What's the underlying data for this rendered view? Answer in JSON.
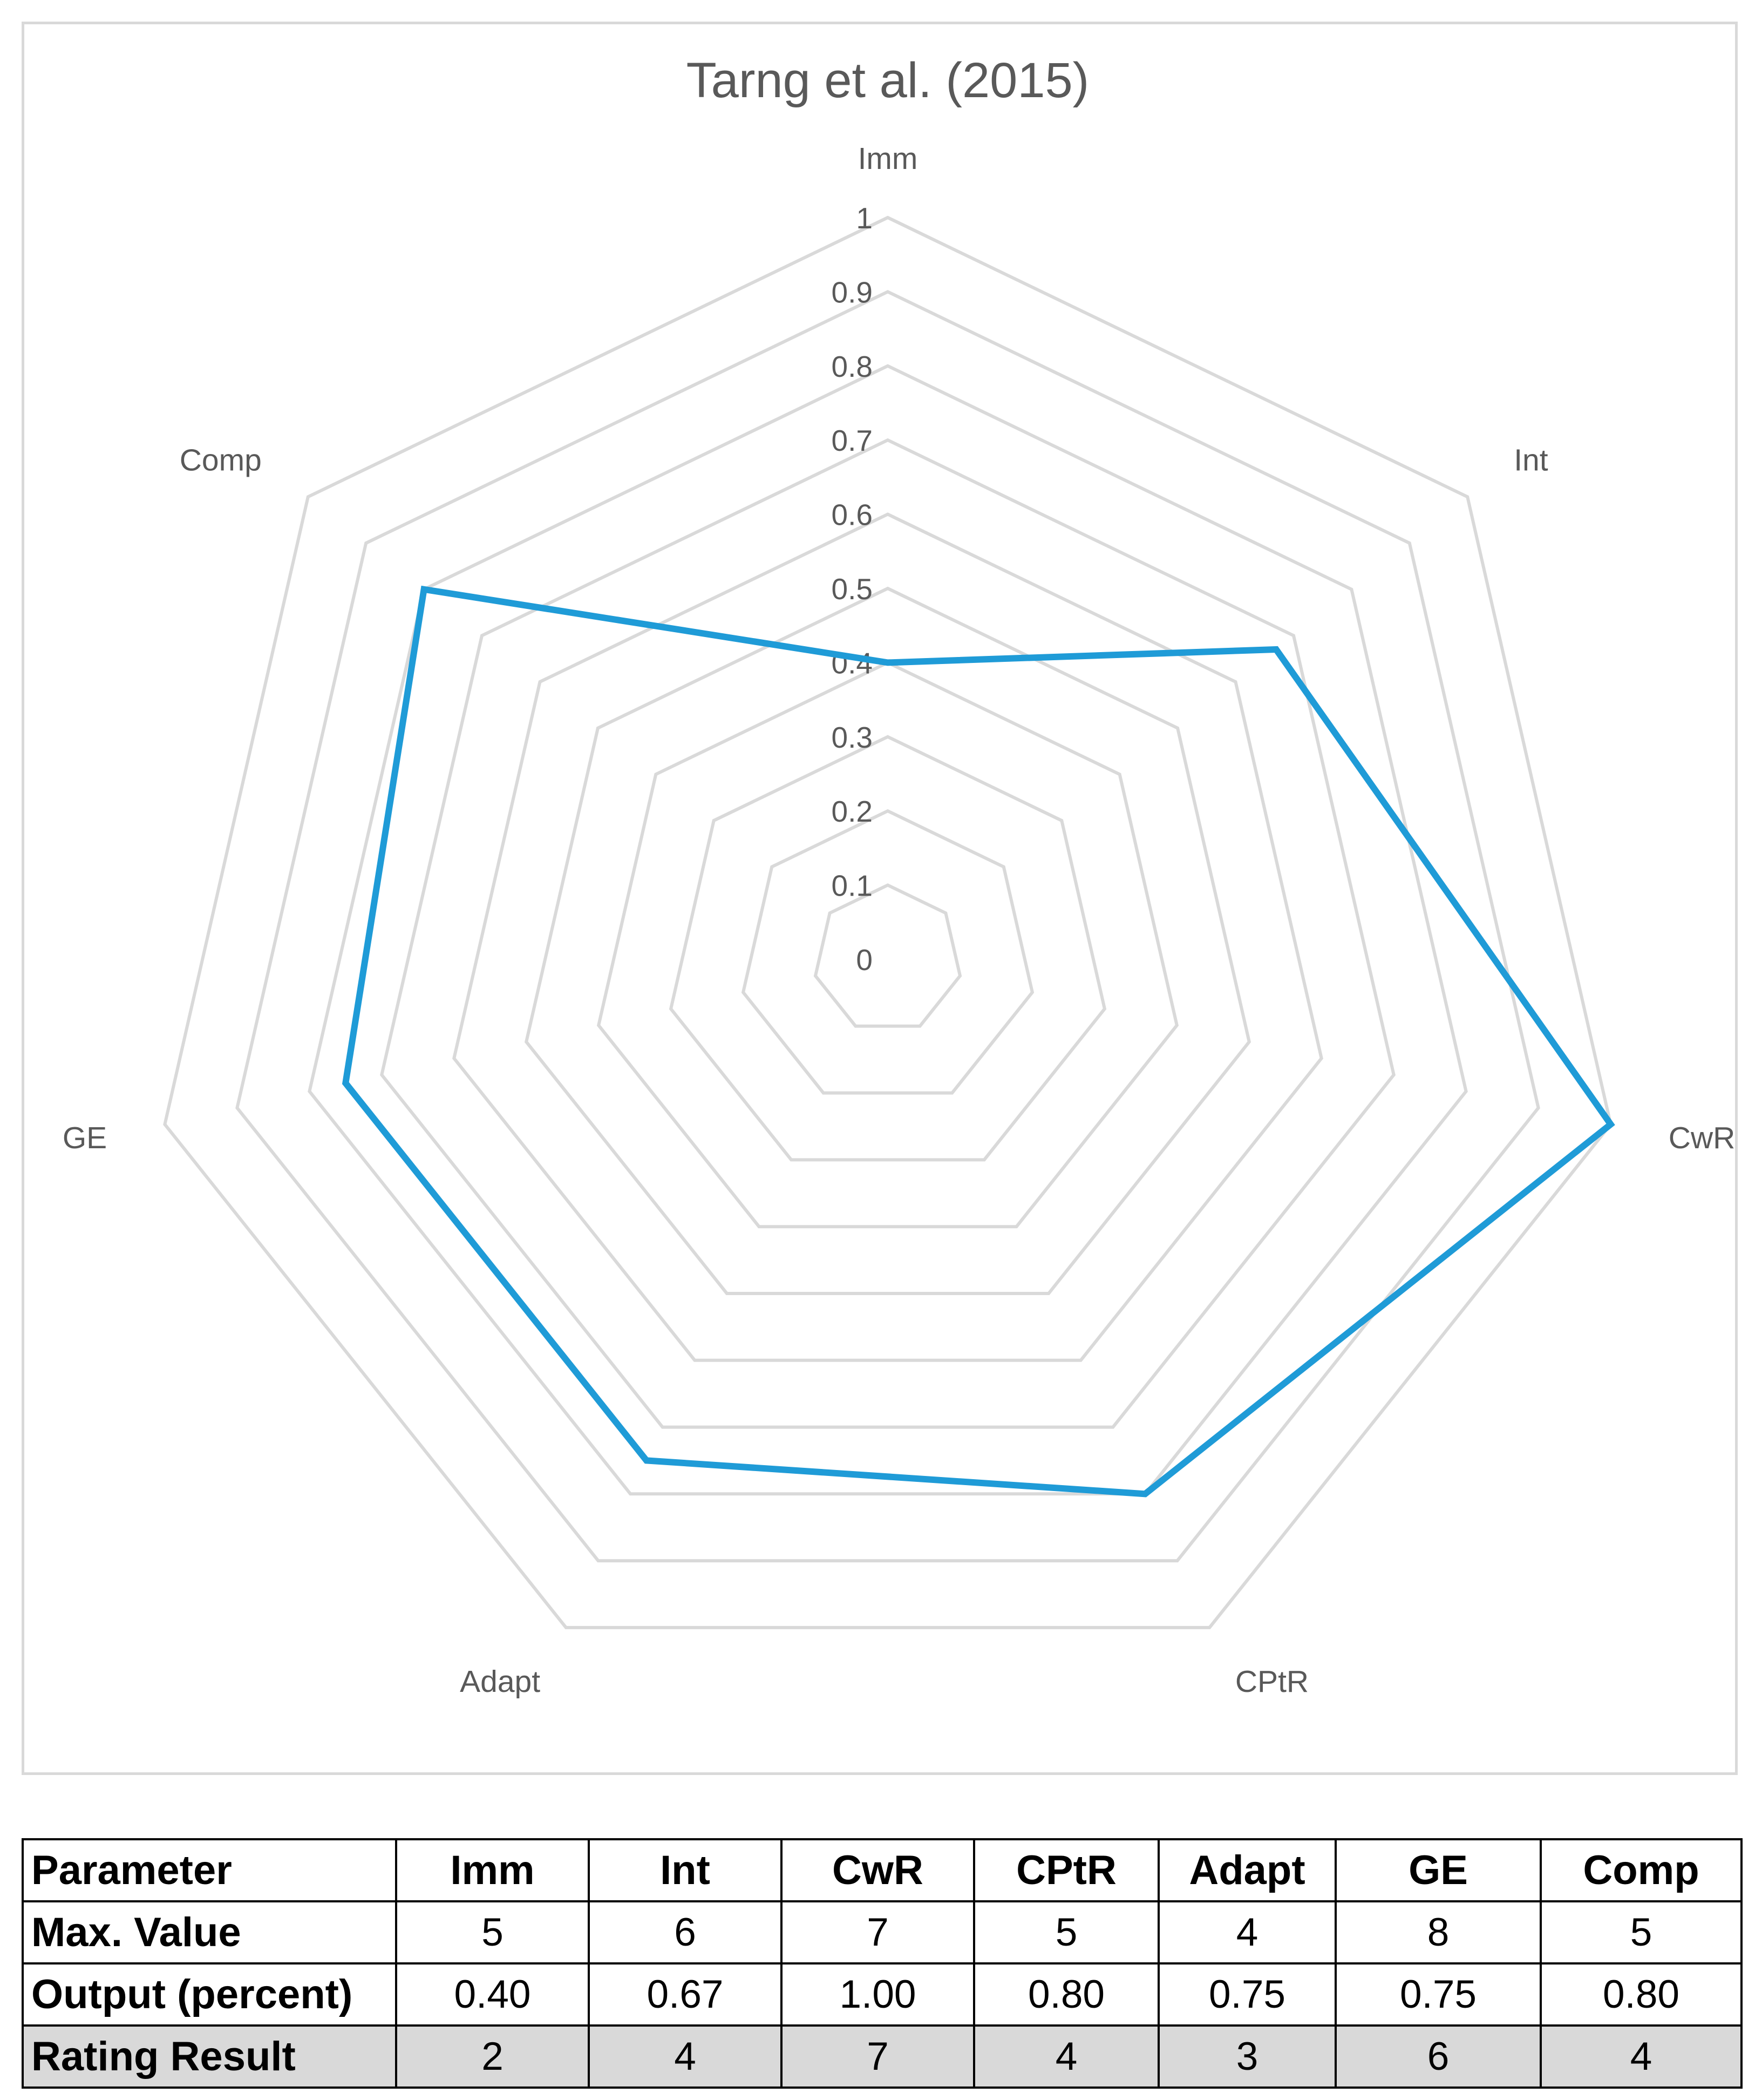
{
  "chart_data": {
    "type": "radar",
    "title": "Tarng et al. (2015)",
    "categories": [
      "Imm",
      "Int",
      "CwR",
      "CPtR",
      "Adapt",
      "GE",
      "Comp"
    ],
    "axis_ticks": [
      "0",
      "0.1",
      "0.2",
      "0.3",
      "0.4",
      "0.5",
      "0.6",
      "0.7",
      "0.8",
      "0.9",
      "1"
    ],
    "rlim": [
      0,
      1
    ],
    "grid": true,
    "series": [
      {
        "values": [
          0.4,
          0.67,
          1.0,
          0.8,
          0.75,
          0.75,
          0.8
        ],
        "color": "#1f9bd7"
      }
    ]
  },
  "table": {
    "header": [
      "Parameter",
      "Imm",
      "Int",
      "CwR",
      "CPtR",
      "Adapt",
      "GE",
      "Comp"
    ],
    "rows": [
      [
        "Max. Value",
        "5",
        "6",
        "7",
        "5",
        "4",
        "8",
        "5"
      ],
      [
        "Output (percent)",
        "0.40",
        "0.67",
        "1.00",
        "0.80",
        "0.75",
        "0.75",
        "0.80"
      ],
      [
        "Rating Result",
        "2",
        "4",
        "7",
        "4",
        "3",
        "6",
        "4"
      ]
    ]
  },
  "colors": {
    "series": "#1f9bd7",
    "grid": "#d9d9d9",
    "rating_row_fill": "#d9d9d9"
  }
}
